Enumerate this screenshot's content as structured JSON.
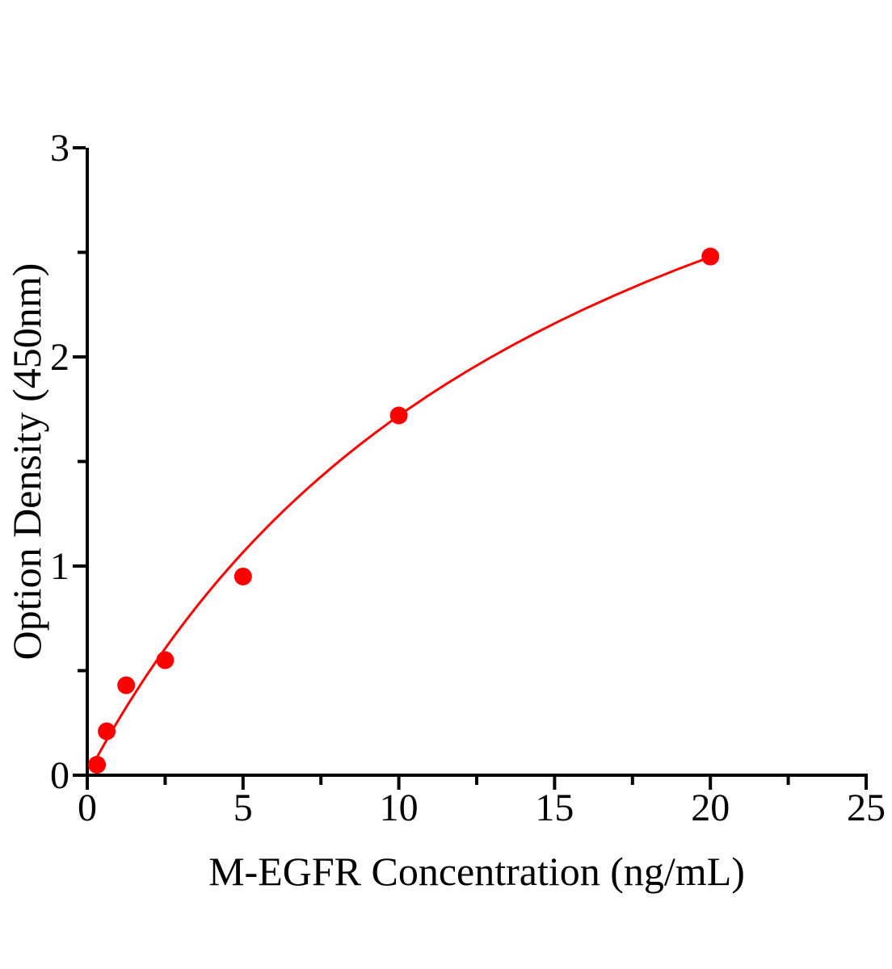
{
  "figure": {
    "background": "#ffffff"
  },
  "chart_data": {
    "type": "scatter",
    "title": "",
    "xlabel": "M-EGFR Concentration（ng/mL）",
    "ylabel": "Option Density（450nm）",
    "xlim": [
      0,
      25
    ],
    "ylim": [
      0,
      3
    ],
    "x_major_ticks": [
      0,
      5,
      10,
      15,
      20,
      25
    ],
    "x_minor_ticks": [
      2.5,
      7.5,
      12.5,
      17.5,
      22.5
    ],
    "y_major_ticks": [
      0,
      1,
      2,
      3
    ],
    "y_minor_ticks": [
      0.5,
      1.5,
      2.5
    ],
    "grid": false,
    "legend": "none",
    "axis_color": "#000000",
    "series": [
      {
        "marker": "circle",
        "color": "#ff0000",
        "points": [
          [
            0.313,
            0.05
          ],
          [
            0.625,
            0.21
          ],
          [
            1.25,
            0.43
          ],
          [
            2.5,
            0.55
          ],
          [
            5,
            0.95
          ],
          [
            10,
            1.72
          ],
          [
            20,
            2.48
          ]
        ],
        "fit_curve": {
          "model": "michaelis_menten",
          "vmax": 4.44,
          "km": 15.83,
          "x_range": [
            0.14,
            20
          ],
          "color": "#ff0000"
        }
      }
    ]
  }
}
